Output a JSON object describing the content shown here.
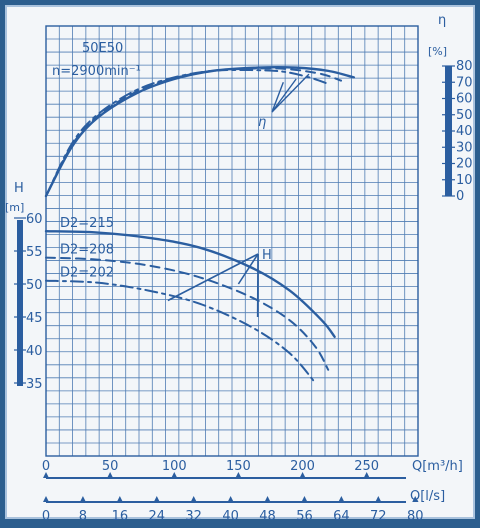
{
  "chart_data": {
    "type": "line",
    "model": "50E50",
    "speed": "n=2900min⁻¹",
    "axes": {
      "q_m3h": {
        "label": "Q[m³/h]",
        "ticks": [
          "0",
          "50",
          "100",
          "150",
          "200",
          "250"
        ],
        "range": [
          0,
          290
        ]
      },
      "q_ls": {
        "label": "Q[l/s]",
        "ticks": [
          "0",
          "8",
          "16",
          "24",
          "32",
          "40",
          "48",
          "56",
          "64",
          "72",
          "80"
        ],
        "range": [
          0,
          80.6
        ]
      },
      "head": {
        "label": "H",
        "unit": "[m]",
        "ticks": [
          "35",
          "40",
          "45",
          "50",
          "55",
          "60"
        ],
        "range": [
          35,
          60
        ]
      },
      "efficiency": {
        "label": "η",
        "unit": "[%]",
        "ticks": [
          "0",
          "10",
          "20",
          "30",
          "40",
          "50",
          "60",
          "70",
          "80"
        ],
        "range": [
          0,
          80
        ]
      }
    },
    "head_label": "H",
    "efficiency_label": "η",
    "grid": true,
    "series": [
      {
        "name": "D2=215",
        "curve": "head",
        "style": "solid",
        "points": [
          [
            0,
            58.0
          ],
          [
            40,
            57.8
          ],
          [
            80,
            57.0
          ],
          [
            120,
            55.5
          ],
          [
            160,
            52.5
          ],
          [
            190,
            49.0
          ],
          [
            215,
            44.5
          ],
          [
            225,
            42.0
          ]
        ]
      },
      {
        "name": "D2=208",
        "curve": "head",
        "style": "dashed",
        "points": [
          [
            0,
            54.0
          ],
          [
            40,
            53.7
          ],
          [
            80,
            52.8
          ],
          [
            120,
            51.0
          ],
          [
            160,
            48.0
          ],
          [
            190,
            44.5
          ],
          [
            210,
            40.5
          ],
          [
            220,
            37.0
          ]
        ]
      },
      {
        "name": "D2=202",
        "curve": "head",
        "style": "dashdot",
        "points": [
          [
            0,
            50.5
          ],
          [
            40,
            50.2
          ],
          [
            80,
            49.0
          ],
          [
            120,
            47.0
          ],
          [
            160,
            43.5
          ],
          [
            190,
            39.5
          ],
          [
            210,
            35.0
          ]
        ]
      },
      {
        "name": "D2=215",
        "curve": "efficiency",
        "style": "solid",
        "points": [
          [
            0,
            0
          ],
          [
            20,
            30
          ],
          [
            40,
            48
          ],
          [
            70,
            63
          ],
          [
            100,
            72
          ],
          [
            130,
            77
          ],
          [
            165,
            79
          ],
          [
            195,
            79
          ],
          [
            220,
            77
          ],
          [
            240,
            73
          ]
        ]
      },
      {
        "name": "D2=208",
        "curve": "efficiency",
        "style": "dashed",
        "points": [
          [
            0,
            0
          ],
          [
            20,
            31
          ],
          [
            40,
            49
          ],
          [
            70,
            64
          ],
          [
            100,
            72.5
          ],
          [
            130,
            77
          ],
          [
            165,
            78.5
          ],
          [
            190,
            78
          ],
          [
            215,
            75
          ],
          [
            230,
            71
          ]
        ]
      },
      {
        "name": "D2=202",
        "curve": "efficiency",
        "style": "dashdot",
        "points": [
          [
            0,
            0
          ],
          [
            20,
            32
          ],
          [
            40,
            50
          ],
          [
            70,
            65
          ],
          [
            100,
            73
          ],
          [
            130,
            77
          ],
          [
            160,
            77.5
          ],
          [
            185,
            76.5
          ],
          [
            205,
            73
          ],
          [
            220,
            69
          ]
        ]
      }
    ]
  }
}
